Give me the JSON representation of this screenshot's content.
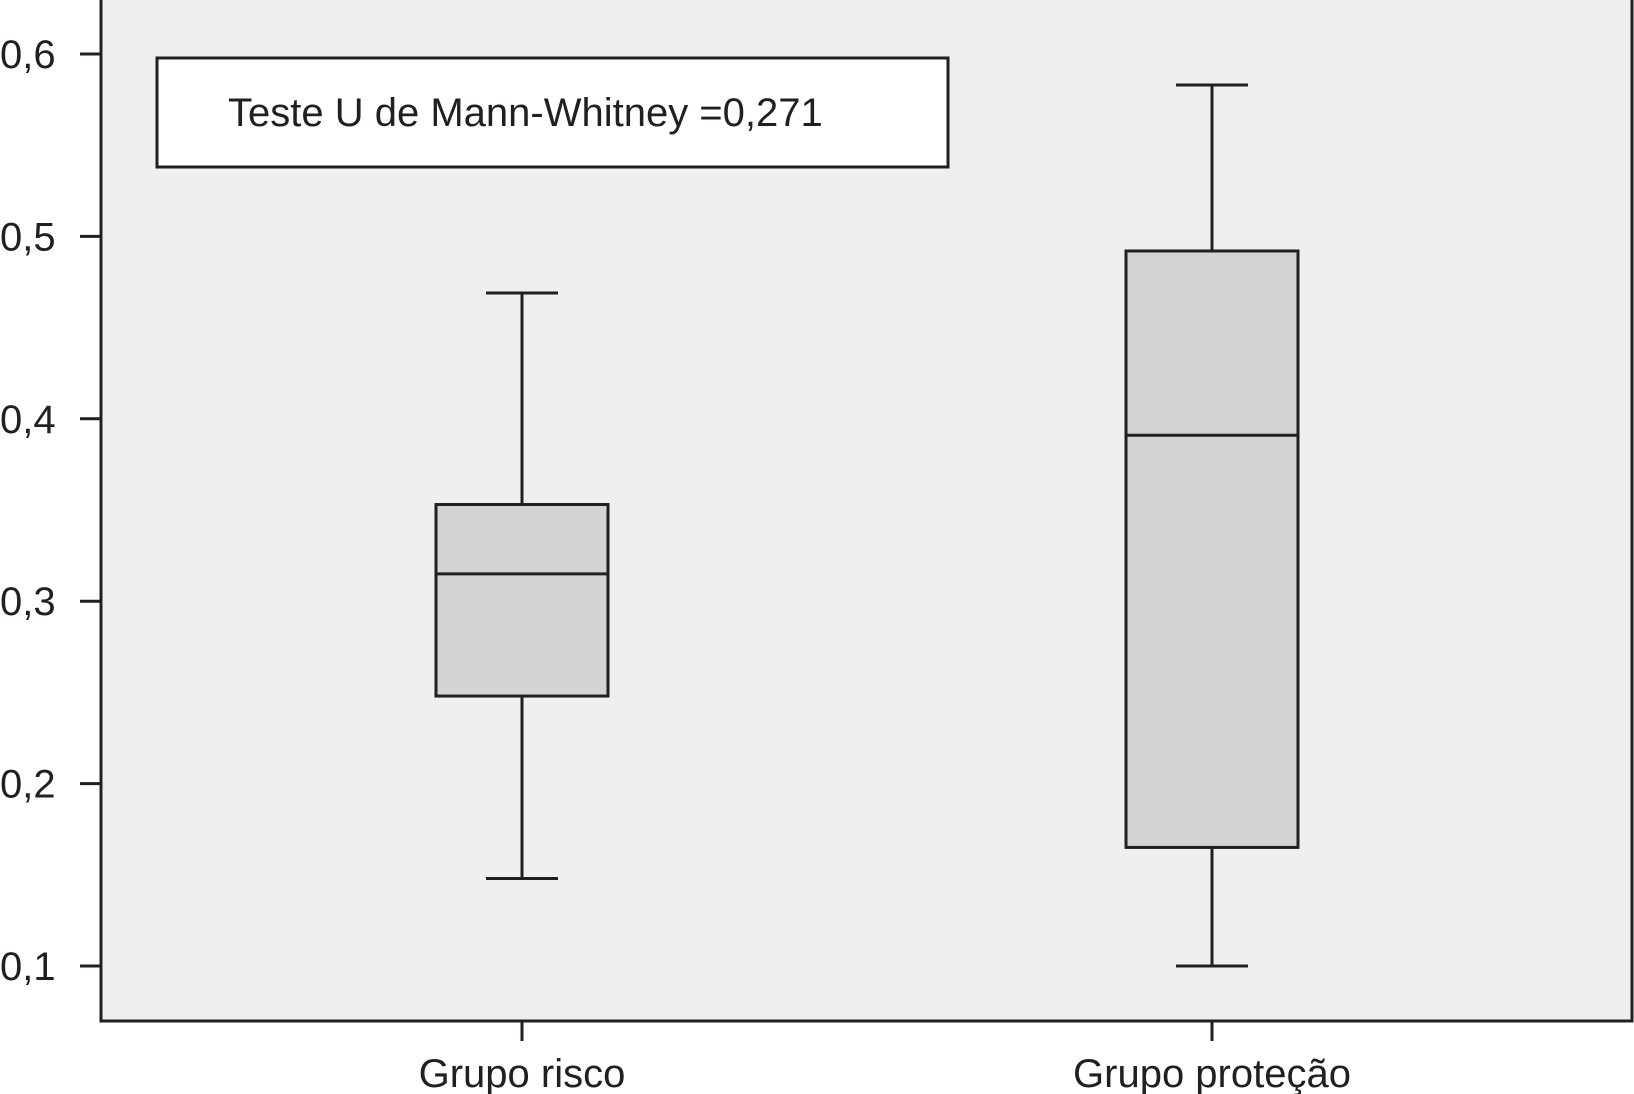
{
  "chart_data": {
    "type": "box",
    "categories": [
      "Grupo risco",
      "Grupo proteção"
    ],
    "boxes": [
      {
        "category": "Grupo risco",
        "min": 0.148,
        "q1": 0.248,
        "median": 0.315,
        "q3": 0.353,
        "max": 0.469
      },
      {
        "category": "Grupo proteção",
        "min": 0.1,
        "q1": 0.165,
        "median": 0.391,
        "q3": 0.492,
        "max": 0.583
      }
    ],
    "y_ticks": [
      0.1,
      0.2,
      0.3,
      0.4,
      0.5,
      0.6
    ],
    "y_tick_labels": [
      "0,1",
      "0,2",
      "0,3",
      "0,4",
      "0,5",
      "0,6"
    ],
    "ylim": [
      0.07,
      0.63
    ],
    "annotation": "Teste U de Mann-Whitney =0,271",
    "title": "",
    "xlabel": "",
    "ylabel": "",
    "grid": false,
    "colors": {
      "plot_background": "#eef0ef",
      "box_fill": "#d1d3d4",
      "stroke": "#231f20",
      "annotation_background": "#ffffff"
    }
  }
}
